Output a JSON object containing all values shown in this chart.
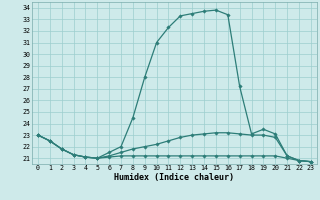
{
  "xlabel": "Humidex (Indice chaleur)",
  "bg_color": "#ceeaea",
  "grid_color": "#9dcece",
  "line_color": "#2d7d78",
  "xlim": [
    -0.5,
    23.5
  ],
  "ylim": [
    20.5,
    34.5
  ],
  "xticks": [
    0,
    1,
    2,
    3,
    4,
    5,
    6,
    7,
    8,
    9,
    10,
    11,
    12,
    13,
    14,
    15,
    16,
    17,
    18,
    19,
    20,
    21,
    22,
    23
  ],
  "yticks": [
    21,
    22,
    23,
    24,
    25,
    26,
    27,
    28,
    29,
    30,
    31,
    32,
    33,
    34
  ],
  "line1_x": [
    0,
    1,
    2,
    3,
    4,
    5,
    6,
    7,
    8,
    9,
    10,
    11,
    12,
    13,
    14,
    15,
    16,
    17,
    18,
    19,
    20,
    21,
    22,
    23
  ],
  "line1_y": [
    23.0,
    22.5,
    21.8,
    21.3,
    21.1,
    21.0,
    21.5,
    22.0,
    24.5,
    28.0,
    31.0,
    32.3,
    33.3,
    33.5,
    33.7,
    33.8,
    33.4,
    27.2,
    23.1,
    23.5,
    23.1,
    21.2,
    20.8,
    20.7
  ],
  "line2_x": [
    0,
    1,
    2,
    3,
    4,
    5,
    6,
    7,
    8,
    9,
    10,
    11,
    12,
    13,
    14,
    15,
    16,
    17,
    18,
    19,
    20,
    21,
    22,
    23
  ],
  "line2_y": [
    23.0,
    22.5,
    21.8,
    21.3,
    21.1,
    21.0,
    21.2,
    21.5,
    21.8,
    22.0,
    22.2,
    22.5,
    22.8,
    23.0,
    23.1,
    23.2,
    23.2,
    23.1,
    23.0,
    23.0,
    22.8,
    21.2,
    20.8,
    20.7
  ],
  "line3_x": [
    0,
    1,
    2,
    3,
    4,
    5,
    6,
    7,
    8,
    9,
    10,
    11,
    12,
    13,
    14,
    15,
    16,
    17,
    18,
    19,
    20,
    21,
    22,
    23
  ],
  "line3_y": [
    23.0,
    22.5,
    21.8,
    21.3,
    21.1,
    21.0,
    21.1,
    21.2,
    21.2,
    21.2,
    21.2,
    21.2,
    21.2,
    21.2,
    21.2,
    21.2,
    21.2,
    21.2,
    21.2,
    21.2,
    21.2,
    21.0,
    20.8,
    20.7
  ]
}
